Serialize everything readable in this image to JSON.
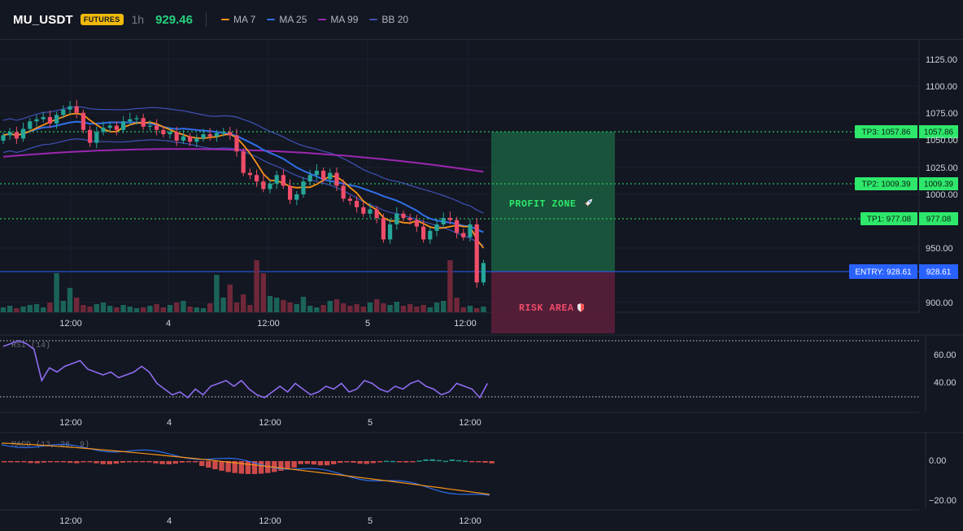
{
  "header": {
    "symbol": "MU_USDT",
    "badge": "FUTURES",
    "timeframe": "1h",
    "last_price": "929.46",
    "legend": [
      {
        "label": "MA 7",
        "color": "#f7931a",
        "icon": "line-swatch"
      },
      {
        "label": "MA 25",
        "color": "#2f6fe8",
        "icon": "line-swatch"
      },
      {
        "label": "MA 99",
        "color": "#9c27b0",
        "icon": "line-swatch"
      },
      {
        "label": "BB 20",
        "color": "#3f51b5",
        "icon": "line-swatch"
      }
    ]
  },
  "colors": {
    "background": "#131722",
    "up": "#26a69a",
    "down": "#ef4d6a",
    "tp": "#2ee86b",
    "entry": "#2962ff",
    "profit_zone": "#1e6b4a",
    "risk_zone": "#6b2344"
  },
  "price_axis": {
    "ticks": [
      "1125.00",
      "1100.00",
      "1075.00",
      "1050.00",
      "1025.00",
      "1000.00",
      "950.00",
      "900.00"
    ]
  },
  "time_axis": {
    "ticks": [
      "12:00",
      "4",
      "12:00",
      "5",
      "12:00"
    ]
  },
  "levels": {
    "tp3": {
      "tag": "TP3: 1057.86",
      "value": "1057.86"
    },
    "tp2": {
      "tag": "TP2: 1009.39",
      "value": "1009.39"
    },
    "tp1": {
      "tag": "TP1: 977.08",
      "value": "977.08"
    },
    "entry": {
      "tag": "ENTRY: 928.61",
      "value": "928.61"
    }
  },
  "zones": {
    "profit": {
      "label": "PROFIT ZONE",
      "icon": "rocket-icon"
    },
    "risk": {
      "label": "RISK AREA",
      "icon": "shield-icon"
    }
  },
  "rsi": {
    "label": "RSI (14)",
    "ticks": [
      "60.00",
      "40.00"
    ]
  },
  "macd": {
    "label": "MACD (12, 26, 9)",
    "ticks": [
      "0.00",
      "−20.00"
    ]
  }
}
